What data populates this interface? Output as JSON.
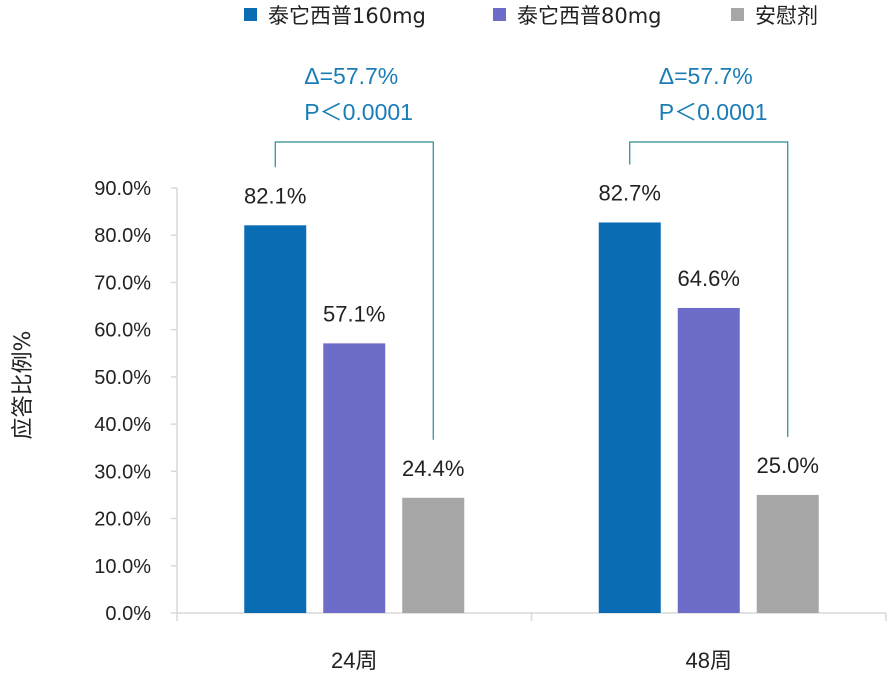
{
  "chart_data": {
    "type": "bar",
    "categories": [
      "24周",
      "48周"
    ],
    "series": [
      {
        "name": "泰它西普160mg",
        "values": [
          82.1,
          82.7
        ],
        "labels": [
          "82.1%",
          "82.7%"
        ],
        "color": "#0a6db3"
      },
      {
        "name": "泰它西普80mg",
        "values": [
          57.1,
          64.6
        ],
        "labels": [
          "57.1%",
          "64.6%"
        ],
        "color": "#6d6cc9"
      },
      {
        "name": "安慰剂",
        "values": [
          24.4,
          25.0
        ],
        "labels": [
          "24.4%",
          "25.0%"
        ],
        "color": "#a6a6a6"
      }
    ],
    "ylabel": "应答比例%",
    "ylim": [
      0,
      90
    ],
    "yticks": [
      0,
      10,
      20,
      30,
      40,
      50,
      60,
      70,
      80,
      90
    ],
    "ytick_labels": [
      "0.0%",
      "10.0%",
      "20.0%",
      "30.0%",
      "40.0%",
      "50.0%",
      "60.0%",
      "70.0%",
      "80.0%",
      "90.0%"
    ],
    "grid": false,
    "legend_position": "top",
    "annotations": [
      {
        "category": "24周",
        "line1": "Δ=57.7%",
        "line2": "P＜0.0001",
        "color": "#1a7db5"
      },
      {
        "category": "48周",
        "line1": "Δ=57.7%",
        "line2": "P＜0.0001",
        "color": "#1a7db5"
      }
    ]
  }
}
